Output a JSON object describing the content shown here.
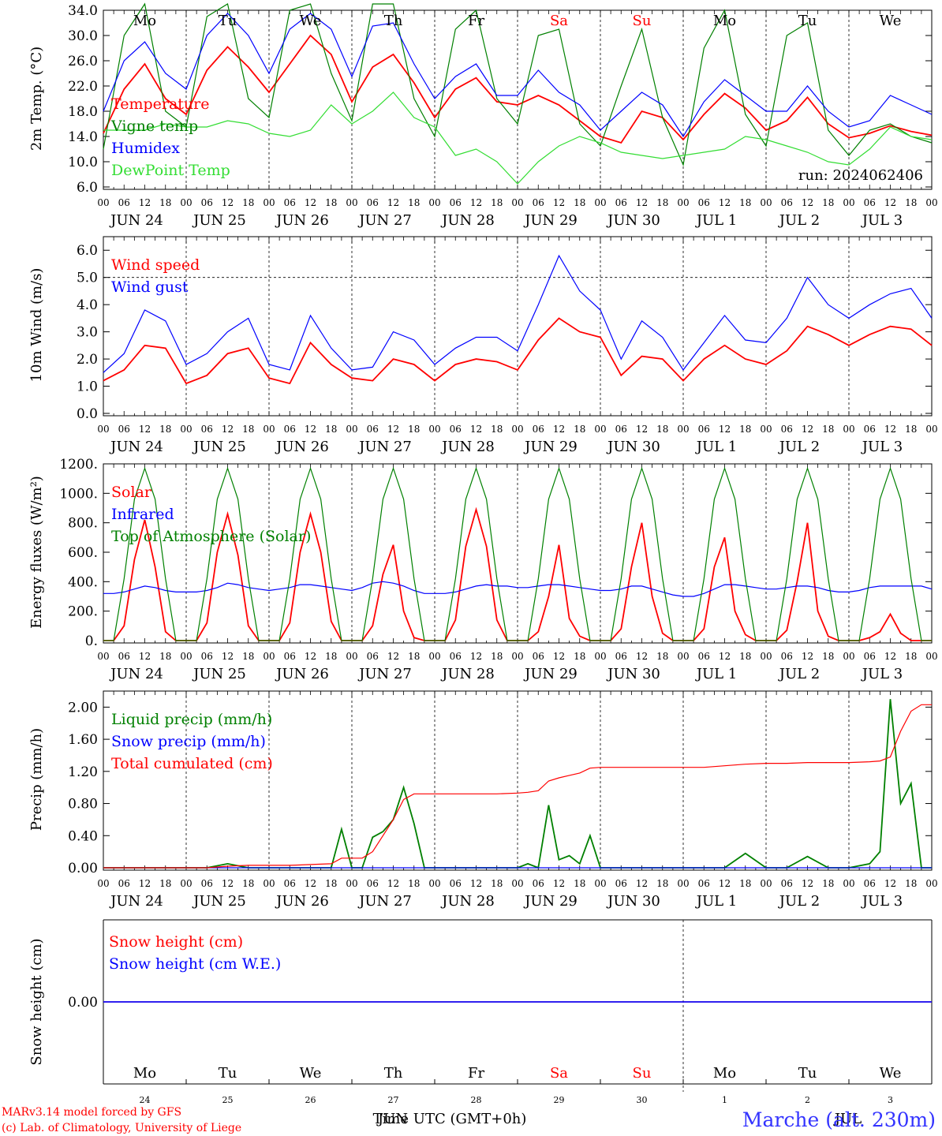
{
  "colors": {
    "red": "#ff0000",
    "green": "#008000",
    "blue": "#0000ff",
    "light_green": "#33dd33",
    "purple": "#800080",
    "weekend": "#ff0000",
    "station": "#3333ff"
  },
  "days": {
    "names": [
      "Mo",
      "Tu",
      "We",
      "Th",
      "Fr",
      "Sa",
      "Su",
      "Mo",
      "Tu",
      "We"
    ],
    "dates": [
      "JUN 24",
      "JUN 25",
      "JUN 26",
      "JUN 27",
      "JUN 28",
      "JUN 29",
      "JUN 30",
      "JUL  1",
      "JUL  2",
      "JUL  3"
    ],
    "day_numbers": [
      "24",
      "25",
      "26",
      "27",
      "28",
      "29",
      "30",
      "1",
      "2",
      "3"
    ],
    "hour_labels": [
      "00",
      "06",
      "12",
      "18"
    ],
    "final_hour_label": "00",
    "weekend_indices": [
      5,
      6
    ]
  },
  "footer": {
    "credit_line1": "MARv3.14 model forced by GFS",
    "credit_line2": "(c) Lab. of Climatology, University of Liege",
    "xlabel": "Time UTC (GMT+0h)",
    "month_overlay1": "JUN",
    "month_overlay2": "JUL",
    "station": "Marche (alt. 230m)"
  },
  "chart_data": [
    {
      "type": "line",
      "ylabel": "2m Temp. (°C)",
      "ylim": [
        6.0,
        34.0
      ],
      "yticks": [
        "6.0",
        "10.0",
        "14.0",
        "18.0",
        "22.0",
        "26.0",
        "30.0",
        "34.0"
      ],
      "annotation": "run: 2024062406",
      "x_hours": [
        0,
        6,
        12,
        18,
        24,
        30,
        36,
        42,
        48,
        54,
        60,
        66,
        72,
        78,
        84,
        90,
        96,
        102,
        108,
        114,
        120,
        126,
        132,
        138,
        144,
        150,
        156,
        162,
        168,
        174,
        180,
        186,
        192,
        198,
        204,
        210,
        216,
        222,
        228,
        234,
        240
      ],
      "series": [
        {
          "name": "Temperature",
          "color": "#ff0000",
          "values": [
            14.5,
            21.5,
            25.5,
            20.0,
            17.5,
            24.5,
            28.2,
            25.0,
            21.0,
            25.5,
            30.0,
            27.0,
            19.5,
            25.0,
            27.0,
            22.5,
            17.0,
            21.5,
            23.3,
            19.5,
            19.0,
            20.5,
            19.0,
            16.5,
            14.0,
            13.0,
            18.0,
            17.0,
            13.5,
            17.5,
            20.8,
            18.5,
            15.0,
            16.5,
            20.2,
            16.0,
            13.8,
            14.5,
            15.7,
            14.8,
            14.2
          ]
        },
        {
          "name": "Vigne temp",
          "color": "#008000",
          "values": [
            12.0,
            30.0,
            35.0,
            18.0,
            15.5,
            33.0,
            35.0,
            20.0,
            17.0,
            34.0,
            35.0,
            24.0,
            16.5,
            35.0,
            35.0,
            20.0,
            14.0,
            31.0,
            34.0,
            20.0,
            16.0,
            30.0,
            31.0,
            16.0,
            12.5,
            22.0,
            31.0,
            17.0,
            9.5,
            28.0,
            34.0,
            17.5,
            12.5,
            30.0,
            32.0,
            15.0,
            11.0,
            15.0,
            16.0,
            14.0,
            13.0
          ]
        },
        {
          "name": "Humidex",
          "color": "#0000ff",
          "values": [
            18.0,
            26.0,
            29.0,
            24.0,
            21.5,
            30.0,
            33.5,
            30.0,
            24.0,
            31.0,
            33.5,
            31.0,
            23.5,
            31.5,
            32.0,
            25.5,
            20.0,
            23.5,
            25.5,
            20.5,
            20.5,
            24.5,
            21.0,
            19.0,
            15.0,
            18.0,
            21.0,
            19.0,
            14.0,
            19.5,
            23.0,
            20.5,
            18.0,
            18.0,
            22.0,
            18.0,
            15.5,
            16.5,
            20.5,
            19.0,
            17.5
          ]
        },
        {
          "name": "DewPoint Temp",
          "color": "#33dd33",
          "values": [
            15.0,
            15.0,
            15.0,
            16.0,
            15.5,
            15.5,
            16.5,
            16.0,
            14.5,
            14.0,
            15.0,
            19.0,
            16.0,
            18.0,
            21.0,
            17.0,
            15.5,
            11.0,
            12.0,
            10.0,
            6.5,
            10.0,
            12.5,
            14.0,
            13.0,
            11.5,
            11.0,
            10.5,
            11.0,
            11.5,
            12.0,
            14.0,
            13.5,
            12.5,
            11.5,
            10.0,
            9.5,
            12.0,
            15.5,
            14.0,
            13.5
          ]
        }
      ]
    },
    {
      "type": "line",
      "ylabel": "10m Wind (m/s)",
      "ylim": [
        0.0,
        6.5
      ],
      "yticks": [
        "0.0",
        "1.0",
        "2.0",
        "3.0",
        "4.0",
        "5.0",
        "6.0"
      ],
      "ref_line": 5.0,
      "x_hours": [
        0,
        6,
        12,
        18,
        24,
        30,
        36,
        42,
        48,
        54,
        60,
        66,
        72,
        78,
        84,
        90,
        96,
        102,
        108,
        114,
        120,
        126,
        132,
        138,
        144,
        150,
        156,
        162,
        168,
        174,
        180,
        186,
        192,
        198,
        204,
        210,
        216,
        222,
        228,
        234,
        240
      ],
      "series": [
        {
          "name": "Wind speed",
          "color": "#ff0000",
          "values": [
            1.2,
            1.6,
            2.5,
            2.4,
            1.1,
            1.4,
            2.2,
            2.4,
            1.3,
            1.1,
            2.6,
            1.8,
            1.3,
            1.2,
            2.0,
            1.8,
            1.2,
            1.8,
            2.0,
            1.9,
            1.6,
            2.7,
            3.5,
            3.0,
            2.8,
            1.4,
            2.1,
            2.0,
            1.2,
            2.0,
            2.5,
            2.0,
            1.8,
            2.3,
            3.2,
            2.9,
            2.5,
            2.9,
            3.2,
            3.1,
            2.5
          ]
        },
        {
          "name": "Wind gust",
          "color": "#0000ff",
          "values": [
            1.5,
            2.2,
            3.8,
            3.4,
            1.8,
            2.2,
            3.0,
            3.5,
            1.8,
            1.6,
            3.6,
            2.4,
            1.6,
            1.7,
            3.0,
            2.7,
            1.8,
            2.4,
            2.8,
            2.8,
            2.3,
            4.0,
            5.8,
            4.5,
            3.8,
            2.0,
            3.4,
            2.8,
            1.6,
            2.6,
            3.6,
            2.7,
            2.6,
            3.5,
            5.0,
            4.0,
            3.5,
            4.0,
            4.4,
            4.6,
            3.5
          ]
        }
      ]
    },
    {
      "type": "line",
      "ylabel": "Energy fluxes (W/m²)",
      "ylim": [
        0,
        1200
      ],
      "yticks": [
        "0.",
        "200.",
        "400.",
        "600.",
        "800.",
        "1000.",
        "1200."
      ],
      "x_hours": [
        0,
        3,
        6,
        9,
        12,
        15,
        18,
        21,
        24,
        27,
        30,
        33,
        36,
        39,
        42,
        45,
        48,
        51,
        54,
        57,
        60,
        63,
        66,
        69,
        72,
        75,
        78,
        81,
        84,
        87,
        90,
        93,
        96,
        99,
        102,
        105,
        108,
        111,
        114,
        117,
        120,
        123,
        126,
        129,
        132,
        135,
        138,
        141,
        144,
        147,
        150,
        153,
        156,
        159,
        162,
        165,
        168,
        171,
        174,
        177,
        180,
        183,
        186,
        189,
        192,
        195,
        198,
        201,
        204,
        207,
        210,
        213,
        216,
        219,
        222,
        225,
        228,
        231,
        234,
        237,
        240
      ],
      "series": [
        {
          "name": "Solar",
          "color": "#ff0000",
          "values": [
            0,
            0,
            100,
            550,
            820,
            500,
            60,
            0,
            0,
            0,
            120,
            600,
            860,
            580,
            100,
            0,
            0,
            0,
            120,
            600,
            860,
            600,
            130,
            0,
            0,
            0,
            100,
            450,
            650,
            200,
            20,
            0,
            0,
            0,
            140,
            640,
            890,
            640,
            140,
            0,
            0,
            0,
            60,
            300,
            650,
            150,
            30,
            0,
            0,
            0,
            80,
            500,
            800,
            300,
            50,
            0,
            0,
            0,
            80,
            500,
            700,
            200,
            40,
            0,
            0,
            0,
            70,
            400,
            800,
            200,
            30,
            0,
            0,
            0,
            20,
            60,
            180,
            50,
            0,
            0,
            0
          ]
        },
        {
          "name": "Infrared",
          "color": "#0000ff",
          "values": [
            320,
            320,
            330,
            350,
            370,
            360,
            340,
            330,
            330,
            330,
            340,
            360,
            390,
            380,
            360,
            350,
            340,
            350,
            360,
            380,
            380,
            370,
            360,
            350,
            340,
            360,
            390,
            400,
            390,
            370,
            340,
            320,
            320,
            320,
            330,
            350,
            370,
            380,
            370,
            370,
            360,
            360,
            370,
            380,
            380,
            370,
            360,
            350,
            340,
            340,
            350,
            370,
            370,
            350,
            330,
            310,
            300,
            300,
            320,
            350,
            380,
            380,
            370,
            360,
            350,
            350,
            360,
            370,
            370,
            360,
            340,
            330,
            330,
            340,
            360,
            370,
            370,
            370,
            370,
            370,
            350
          ]
        },
        {
          "name": "Top of Atmosphere (Solar)",
          "color": "#008000",
          "values": [
            0,
            0,
            420,
            960,
            1170,
            960,
            420,
            0,
            0,
            0,
            420,
            960,
            1170,
            960,
            420,
            0,
            0,
            0,
            420,
            960,
            1170,
            960,
            420,
            0,
            0,
            0,
            420,
            960,
            1170,
            960,
            420,
            0,
            0,
            0,
            420,
            960,
            1170,
            960,
            420,
            0,
            0,
            0,
            420,
            960,
            1170,
            960,
            420,
            0,
            0,
            0,
            420,
            960,
            1170,
            960,
            420,
            0,
            0,
            0,
            420,
            960,
            1170,
            960,
            420,
            0,
            0,
            0,
            420,
            960,
            1170,
            960,
            420,
            0,
            0,
            0,
            420,
            960,
            1170,
            960,
            420,
            0,
            0
          ]
        }
      ]
    },
    {
      "type": "line",
      "ylabel": "Precip (mm/h)",
      "ylim": [
        0.0,
        2.2
      ],
      "yticks": [
        "0.00",
        "0.40",
        "0.80",
        "1.20",
        "1.60",
        "2.00"
      ],
      "x_hours": [
        0,
        6,
        12,
        18,
        24,
        30,
        36,
        42,
        48,
        54,
        60,
        66,
        69,
        72,
        75,
        78,
        81,
        84,
        87,
        90,
        93,
        96,
        102,
        108,
        114,
        120,
        123,
        126,
        129,
        132,
        135,
        138,
        141,
        144,
        150,
        156,
        162,
        168,
        174,
        180,
        186,
        192,
        198,
        204,
        210,
        216,
        222,
        225,
        228,
        231,
        234,
        237,
        240
      ],
      "series": [
        {
          "name": "Liquid precip (mm/h)",
          "color": "#008000",
          "values": [
            0,
            0,
            0,
            0,
            0,
            0,
            0.05,
            0,
            0,
            0,
            0,
            0,
            0.48,
            0,
            0,
            0.38,
            0.45,
            0.6,
            1.0,
            0.55,
            0,
            0,
            0,
            0,
            0,
            0,
            0.05,
            0,
            0.78,
            0.1,
            0.15,
            0.05,
            0.4,
            0,
            0,
            0,
            0,
            0,
            0,
            0,
            0.18,
            0,
            0,
            0.14,
            0,
            0,
            0.05,
            0.2,
            2.1,
            0.8,
            1.05,
            0,
            0
          ]
        },
        {
          "name": "Snow precip (mm/h)",
          "color": "#0000ff",
          "values": [
            0,
            0,
            0,
            0,
            0,
            0,
            0,
            0,
            0,
            0,
            0,
            0,
            0,
            0,
            0,
            0,
            0,
            0,
            0,
            0,
            0,
            0,
            0,
            0,
            0,
            0,
            0,
            0,
            0,
            0,
            0,
            0,
            0,
            0,
            0,
            0,
            0,
            0,
            0,
            0,
            0,
            0,
            0,
            0,
            0,
            0,
            0,
            0,
            0,
            0,
            0,
            0,
            0
          ]
        },
        {
          "name": "Total cumulated (cm)",
          "color": "#ff0000",
          "values": [
            0,
            0,
            0,
            0,
            0,
            0,
            0.02,
            0.03,
            0.03,
            0.03,
            0.04,
            0.05,
            0.12,
            0.12,
            0.12,
            0.2,
            0.4,
            0.6,
            0.85,
            0.92,
            0.92,
            0.92,
            0.92,
            0.92,
            0.92,
            0.93,
            0.94,
            0.96,
            1.08,
            1.12,
            1.15,
            1.18,
            1.24,
            1.25,
            1.25,
            1.25,
            1.25,
            1.25,
            1.25,
            1.27,
            1.29,
            1.3,
            1.3,
            1.31,
            1.31,
            1.31,
            1.32,
            1.33,
            1.38,
            1.7,
            1.95,
            2.03,
            2.03
          ]
        }
      ]
    },
    {
      "type": "line",
      "ylabel": "Snow height (cm)",
      "ytick": "0.00",
      "x_hours": [
        0,
        240
      ],
      "series": [
        {
          "name": "Snow height (cm)",
          "color": "#ff0000",
          "values": [
            0,
            0
          ]
        },
        {
          "name": "Snow height (cm W.E.)",
          "color": "#0000ff",
          "values": [
            0,
            0
          ]
        }
      ]
    }
  ]
}
